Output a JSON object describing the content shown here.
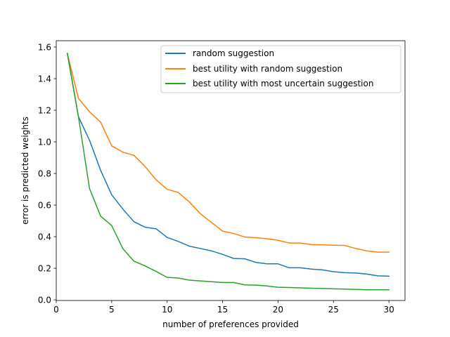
{
  "chart_data": {
    "type": "line",
    "xlabel": "number of preferences provided",
    "ylabel": "error is predicted weights",
    "xlim": [
      0,
      31.45
    ],
    "ylim": [
      -0.004,
      1.64
    ],
    "xticks": [
      0,
      5,
      10,
      15,
      20,
      25,
      30
    ],
    "yticks": [
      0.0,
      0.2,
      0.4,
      0.6,
      0.8,
      1.0,
      1.2,
      1.4,
      1.6
    ],
    "ytick_labels": [
      "0.0",
      "0.2",
      "0.4",
      "0.6",
      "0.8",
      "1.0",
      "1.2",
      "1.4",
      "1.6"
    ],
    "grid": false,
    "legend_position": "top-right",
    "x": [
      1,
      2,
      3,
      4,
      5,
      6,
      7,
      8,
      9,
      10,
      11,
      12,
      13,
      14,
      15,
      16,
      17,
      18,
      19,
      20,
      21,
      22,
      23,
      24,
      25,
      26,
      27,
      28,
      29,
      30
    ],
    "series": [
      {
        "name": "random suggestion",
        "color": "#1f77b4",
        "values": [
          1.56,
          1.16,
          1.01,
          0.82,
          0.665,
          0.575,
          0.495,
          0.46,
          0.45,
          0.395,
          0.37,
          0.34,
          0.325,
          0.31,
          0.288,
          0.262,
          0.26,
          0.237,
          0.228,
          0.228,
          0.203,
          0.203,
          0.195,
          0.19,
          0.178,
          0.172,
          0.17,
          0.163,
          0.152,
          0.15
        ]
      },
      {
        "name": "best utility with random suggestion",
        "color": "#ff7f0e",
        "values": [
          1.56,
          1.275,
          1.19,
          1.125,
          0.975,
          0.935,
          0.915,
          0.845,
          0.76,
          0.7,
          0.68,
          0.62,
          0.545,
          0.49,
          0.435,
          0.42,
          0.398,
          0.393,
          0.387,
          0.377,
          0.36,
          0.36,
          0.35,
          0.348,
          0.346,
          0.345,
          0.325,
          0.31,
          0.302,
          0.302
        ]
      },
      {
        "name": "best utility with most uncertain suggestion",
        "color": "#2ca02c",
        "values": [
          1.56,
          1.16,
          0.705,
          0.53,
          0.47,
          0.325,
          0.245,
          0.215,
          0.18,
          0.142,
          0.138,
          0.125,
          0.12,
          0.115,
          0.11,
          0.11,
          0.095,
          0.093,
          0.088,
          0.08,
          0.078,
          0.076,
          0.074,
          0.072,
          0.07,
          0.068,
          0.066,
          0.064,
          0.064,
          0.064
        ]
      }
    ]
  }
}
